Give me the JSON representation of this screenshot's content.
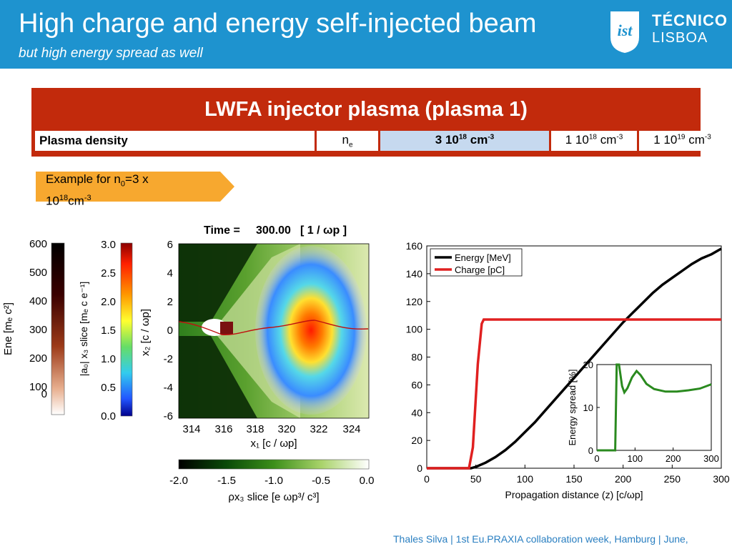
{
  "header": {
    "title": "High charge and energy self-injected beam",
    "subtitle": "but high energy spread as well",
    "logo": {
      "line1": "TÉCNICO",
      "line2": "LISBOA",
      "mark": "ist"
    }
  },
  "plasma_panel": {
    "title": "LWFA injector plasma (plasma 1)",
    "row": {
      "label": "Plasma density",
      "symbol": "n",
      "symbol_sub": "e",
      "main_value": "3 10",
      "main_exp": "18",
      "main_unit": "cm",
      "main_unit_exp": "-3",
      "alt1_value": "1 10",
      "alt1_exp": "18",
      "alt1_unit": "cm",
      "alt1_unit_exp": "-3",
      "alt2_value": "1 10",
      "alt2_exp": "19",
      "alt2_unit": "cm",
      "alt2_unit_exp": "-3"
    }
  },
  "example_callout": {
    "line1": "Example for n",
    "sub": "0",
    "line1b": "=3 x",
    "line2": "10",
    "exp": "18",
    "unit": "cm",
    "unit_exp": "-3",
    "color": "#f7a82f"
  },
  "simulation_figure": {
    "time_label": "Time =",
    "time_value": "300.00",
    "time_unit": "[ 1 / ωp ]",
    "ene_colorbar": {
      "label": "Ene [mₑ c²]",
      "ticks": [
        "600",
        "500",
        "400",
        "300",
        "200",
        "100",
        "0"
      ]
    },
    "a0_colorbar": {
      "label": "|a₀| x₃ slice [mₑ c e⁻¹]",
      "ticks": [
        "3.0",
        "2.5",
        "2.0",
        "1.5",
        "1.0",
        "0.5",
        "0.0"
      ]
    },
    "y_axis": {
      "label": "x₂ [c / ωp]",
      "ticks": [
        "6",
        "4",
        "2",
        "0",
        "-2",
        "-4",
        "-6"
      ]
    },
    "x_axis": {
      "label": "x₁ [c / ωp]",
      "ticks": [
        "314",
        "316",
        "318",
        "320",
        "322",
        "324"
      ]
    },
    "rho_colorbar": {
      "label": "ρx₃ slice [e ωp³/ c³]",
      "ticks": [
        "-2.0",
        "-1.5",
        "-1.0",
        "-0.5",
        "0.0"
      ]
    }
  },
  "chart_data": [
    {
      "type": "line",
      "xlabel": "Propagation distance (z) [c/ωp]",
      "ylabel": "",
      "xlim": [
        0,
        300
      ],
      "ylim": [
        0,
        160
      ],
      "x_ticks": [
        "0",
        "50",
        "100",
        "150",
        "200",
        "250",
        "300"
      ],
      "y_ticks": [
        "0",
        "20",
        "40",
        "60",
        "80",
        "100",
        "120",
        "140",
        "160"
      ],
      "legend": "top-left",
      "series": [
        {
          "name": "Energy [MeV]",
          "color": "#000000",
          "x": [
            0,
            40,
            45,
            50,
            60,
            70,
            80,
            90,
            100,
            110,
            120,
            130,
            140,
            150,
            160,
            170,
            180,
            190,
            200,
            210,
            220,
            230,
            240,
            250,
            260,
            270,
            280,
            290,
            300
          ],
          "y": [
            0,
            0,
            0,
            1,
            4,
            8,
            13,
            19,
            26,
            33,
            41,
            49,
            57,
            65,
            73,
            81,
            89,
            97,
            105,
            112,
            119,
            126,
            132,
            137,
            142,
            147,
            151,
            154,
            158
          ]
        },
        {
          "name": "Charge [pC]",
          "color": "#e02020",
          "x": [
            0,
            43,
            47,
            52,
            56,
            58,
            300
          ],
          "y": [
            0,
            0,
            15,
            75,
            104,
            107,
            107
          ]
        }
      ]
    },
    {
      "type": "line",
      "ylabel": "Energy spread [%]",
      "xlim": [
        0,
        300
      ],
      "ylim": [
        0,
        20
      ],
      "x_ticks": [
        "0",
        "100",
        "200",
        "300"
      ],
      "y_ticks": [
        "0",
        "10",
        "20"
      ],
      "series": [
        {
          "color": "#2a8a1f",
          "x": [
            0,
            45,
            48,
            52,
            58,
            66,
            72,
            80,
            92,
            104,
            115,
            130,
            150,
            180,
            210,
            240,
            270,
            300
          ],
          "y": [
            0,
            0,
            0,
            20,
            20,
            15,
            13.5,
            14.5,
            17,
            18.5,
            17.5,
            15.5,
            14.3,
            13.7,
            13.7,
            14.0,
            14.4,
            15.4
          ]
        }
      ]
    }
  ],
  "footer": {
    "text": "Thales Silva | 1st Eu.PRAXIA collaboration week, Hamburg | June,"
  }
}
